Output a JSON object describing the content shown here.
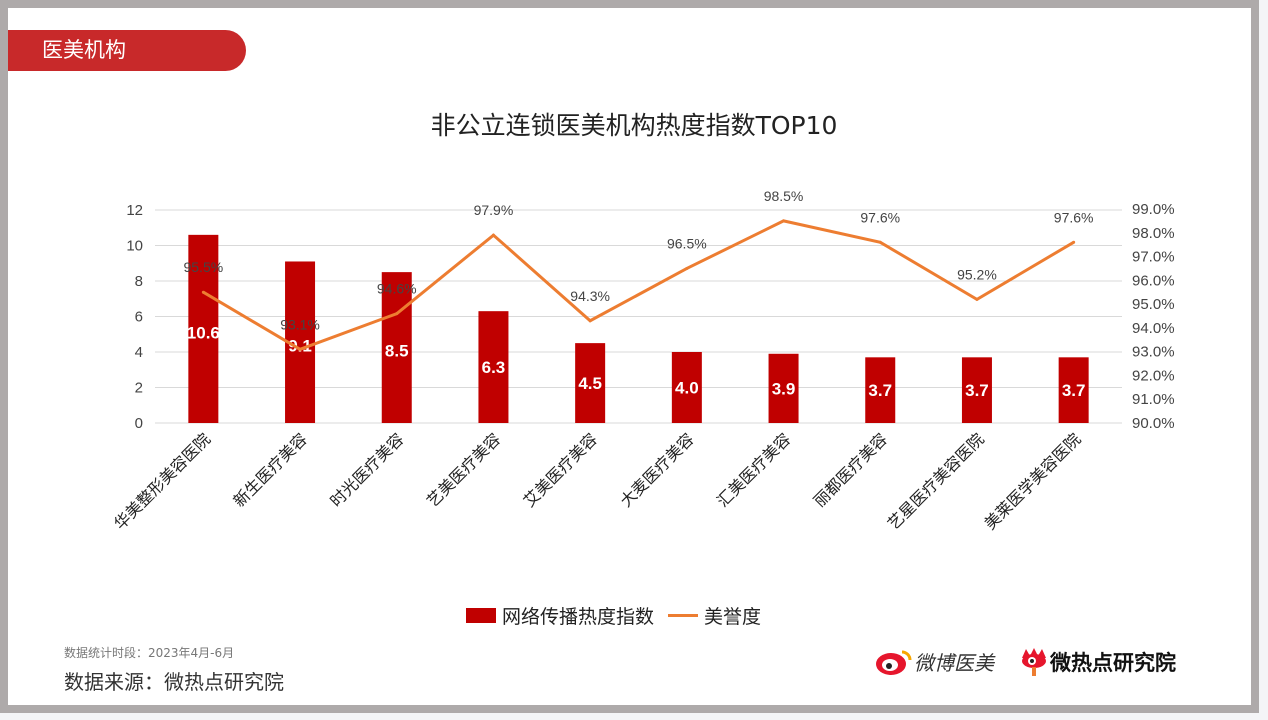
{
  "section_tag": "医美机构",
  "footer": {
    "period": "数据统计时段：2023年4月-6月",
    "source": "数据来源：微热点研究院",
    "logo_weibo": "微博医美",
    "logo_wrd": "微热点研究院"
  },
  "colors": {
    "bar": "#c00000",
    "line": "#ed7d31",
    "tag": "#c8292a"
  },
  "chart_data": {
    "type": "bar+line",
    "title": "非公立连锁医美机构热度指数TOP10",
    "categories": [
      "华美整形美容医院",
      "新生医疗美容",
      "时光医疗美容",
      "艺美医疗美容",
      "艾美医疗美容",
      "大麦医疗美容",
      "汇美医疗美容",
      "丽都医疗美容",
      "艺星医疗美容医院",
      "美莱医学美容医院"
    ],
    "series": [
      {
        "name": "网络传播热度指数",
        "type": "bar",
        "axis": "left",
        "values": [
          10.6,
          9.1,
          8.5,
          6.3,
          4.5,
          4.0,
          3.9,
          3.7,
          3.7,
          3.7
        ],
        "labels": [
          "10.6",
          "9.1",
          "8.5",
          "6.3",
          "4.5",
          "4.0",
          "3.9",
          "3.7",
          "3.7",
          "3.7"
        ]
      },
      {
        "name": "美誉度",
        "type": "line",
        "axis": "right",
        "values": [
          95.5,
          93.1,
          94.6,
          97.9,
          94.3,
          96.5,
          98.5,
          97.6,
          95.2,
          97.6
        ],
        "labels": [
          "95.5%",
          "93.1%",
          "94.6%",
          "97.9%",
          "94.3%",
          "96.5%",
          "98.5%",
          "97.6%",
          "95.2%",
          "97.6%"
        ]
      }
    ],
    "y_left": {
      "lim": [
        0,
        12
      ],
      "ticks": [
        "0",
        "2",
        "4",
        "6",
        "8",
        "10",
        "12"
      ]
    },
    "y_right": {
      "lim": [
        90,
        99
      ],
      "ticks": [
        "90.0%",
        "91.0%",
        "92.0%",
        "93.0%",
        "94.0%",
        "95.0%",
        "96.0%",
        "97.0%",
        "98.0%",
        "99.0%"
      ]
    },
    "grid": true,
    "legend": "bottom"
  }
}
